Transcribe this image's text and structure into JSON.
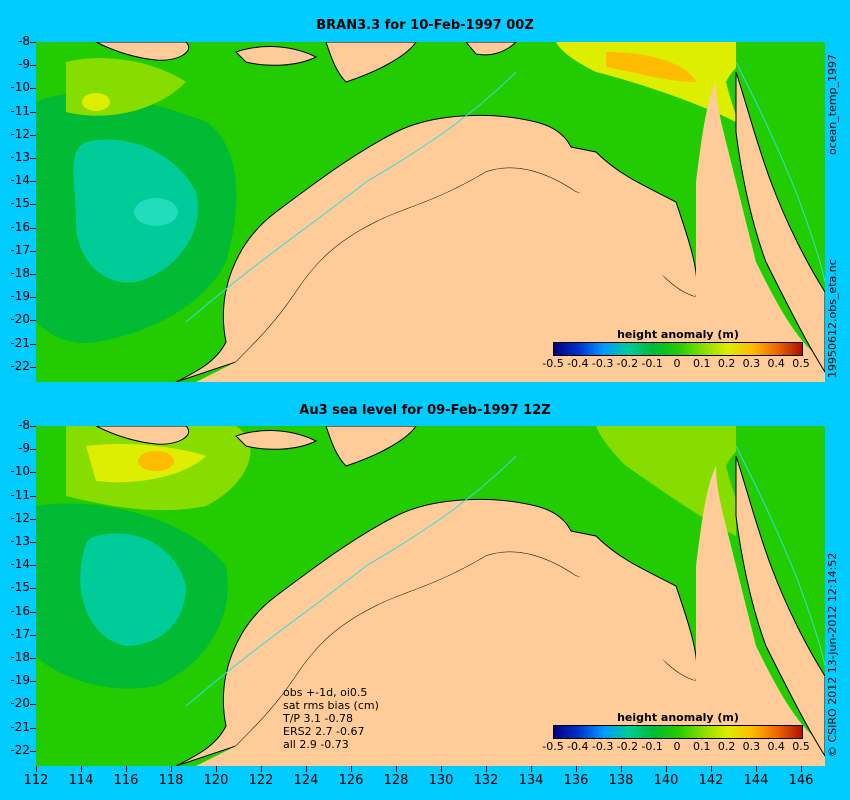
{
  "panels": [
    {
      "title": "BRAN3.3 for 10-Feb-1997 00Z",
      "side_label": "ocean_temp_1997",
      "side_label2": "19950612.obs_eta.nc"
    },
    {
      "title": "Au3 sea level  for 09-Feb-1997 12Z",
      "side_label": "© CSIRO 2012  13-Jun-2012 12:14:52"
    }
  ],
  "colorbar": {
    "label": "height anomaly (m)",
    "ticks": [
      "-0.5",
      "-0.4",
      "-0.3",
      "-0.2",
      "-0.1",
      "0",
      "0.1",
      "0.2",
      "0.3",
      "0.4",
      "0.5"
    ],
    "colors": [
      "#000080",
      "#0033cc",
      "#0099ff",
      "#00cc99",
      "#00bb33",
      "#22cc00",
      "#88dd00",
      "#ddee00",
      "#ffbb00",
      "#ee6600",
      "#aa1100"
    ]
  },
  "y_ticks": [
    "-8",
    "-9",
    "-10",
    "-11",
    "-12",
    "-13",
    "-14",
    "-15",
    "-16",
    "-17",
    "-18",
    "-19",
    "-20",
    "-21",
    "-22"
  ],
  "x_ticks": [
    "112",
    "114",
    "116",
    "118",
    "120",
    "122",
    "124",
    "126",
    "128",
    "130",
    "132",
    "134",
    "136",
    "138",
    "140",
    "142",
    "144",
    "146"
  ],
  "stats": {
    "line1": "obs +-1d, oi0.5",
    "line2": "sat rms bias (cm)",
    "line3": "T/P  3.1 -0.78",
    "line4": "ERS2 2.7 -0.67",
    "line5": "all 2.9 -0.73"
  },
  "colors": {
    "background": "#00ccff",
    "land": "#ffcc99",
    "coast": "#000000",
    "isobath": "#33dddd"
  }
}
